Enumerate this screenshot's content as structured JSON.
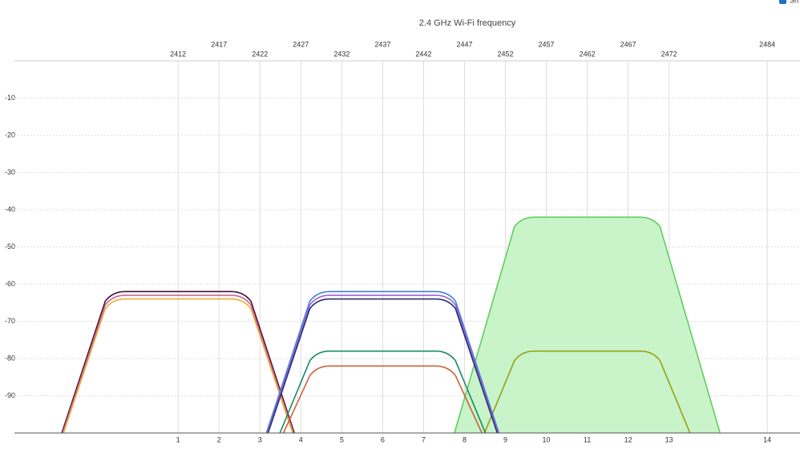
{
  "chart_data": {
    "type": "spectrum",
    "title": "2.4 GHz Wi-Fi frequency",
    "checkbox_label": "Sh",
    "channels": [
      1,
      2,
      3,
      4,
      5,
      6,
      7,
      8,
      9,
      10,
      11,
      12,
      13,
      14
    ],
    "xticks": [
      2412,
      2417,
      2422,
      2427,
      2432,
      2437,
      2442,
      2447,
      2452,
      2457,
      2462,
      2467,
      2472,
      2484
    ],
    "xlim": [
      2392,
      2488
    ],
    "ylim": [
      -100,
      0
    ],
    "yticks": [
      -10,
      -20,
      -30,
      -40,
      -50,
      -60,
      -70,
      -80,
      -90
    ],
    "grid": true,
    "series": [
      {
        "channel": 11,
        "value": -42,
        "color": "#5fcf5f",
        "fill": "#c6f2c6"
      },
      {
        "channel": 11,
        "value": -78,
        "color": "#9aa012"
      },
      {
        "channel": 1,
        "value": -62,
        "color": "#4a1030"
      },
      {
        "channel": 1,
        "value": -63,
        "color": "#c2649c"
      },
      {
        "channel": 1,
        "value": -64,
        "color": "#f0ac30"
      },
      {
        "channel": 6,
        "value": -62,
        "color": "#3a82dc"
      },
      {
        "channel": 6,
        "value": -63,
        "color": "#9c5fd6"
      },
      {
        "channel": 6,
        "value": -64,
        "color": "#2a2f6e"
      },
      {
        "channel": 6,
        "value": -78,
        "color": "#1a8a6a"
      },
      {
        "channel": 6,
        "value": -82,
        "color": "#d0603a"
      }
    ]
  }
}
